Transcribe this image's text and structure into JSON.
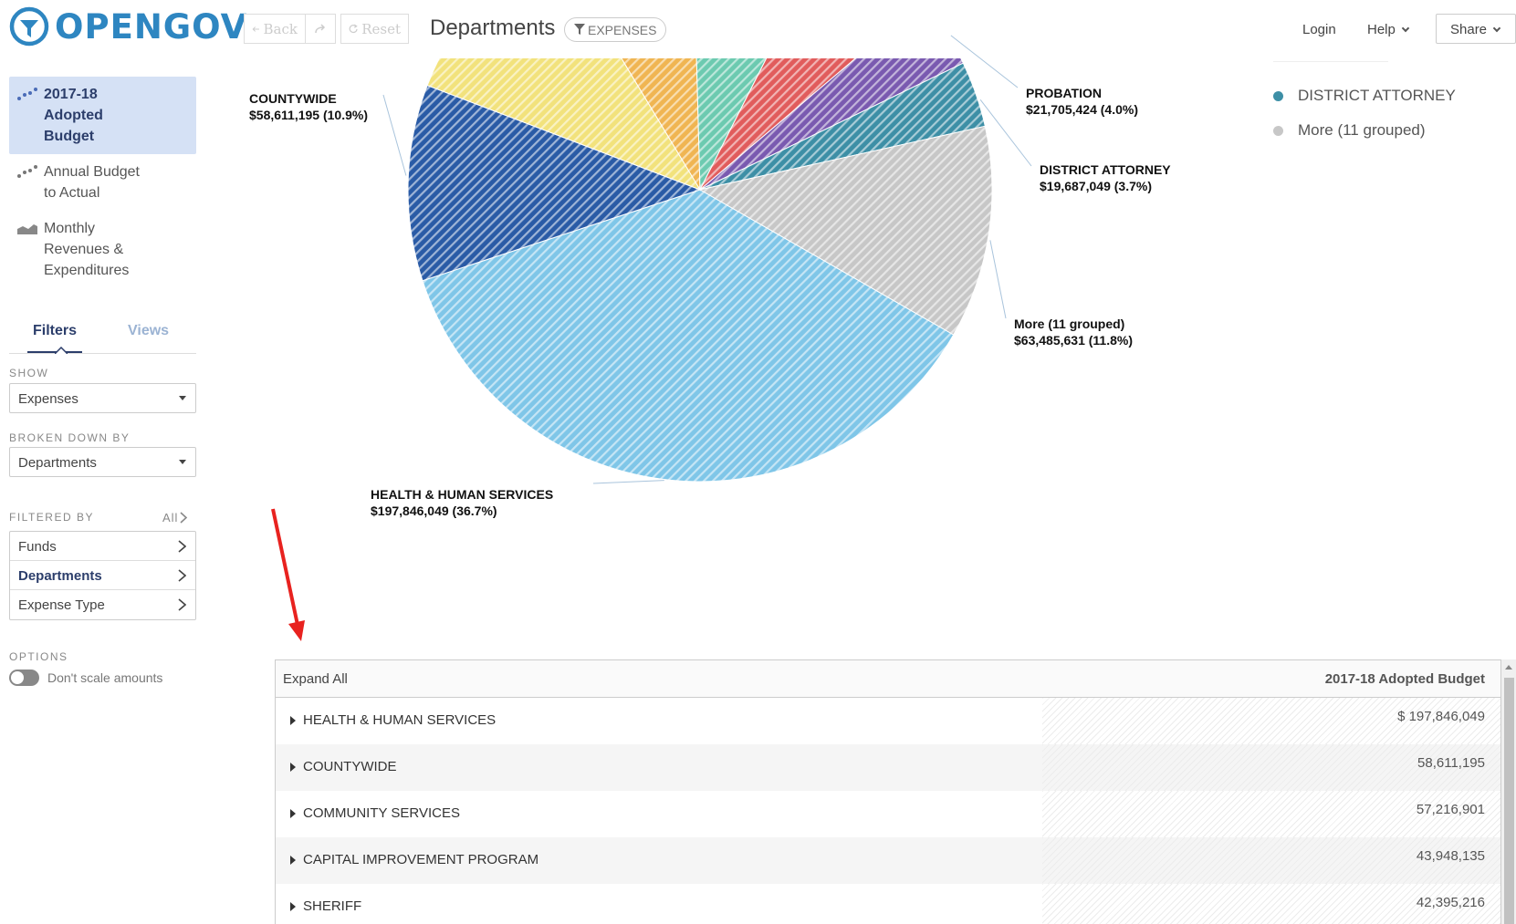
{
  "brand": {
    "name": "OPENGOV",
    "color": "#2e86c1"
  },
  "sidebar": {
    "items": [
      {
        "label": "2017-18\nAdopted\nBudget",
        "icon": "scatter-icon",
        "active": true
      },
      {
        "label": "Annual Budget\nto Actual",
        "icon": "scatter-icon",
        "active": false
      },
      {
        "label": "Monthly\nRevenues &\nExpenditures",
        "icon": "area-chart-icon",
        "active": false
      }
    ],
    "tabs": {
      "filters": "Filters",
      "views": "Views"
    },
    "show": {
      "label": "SHOW",
      "value": "Expenses"
    },
    "broken_down_by": {
      "label": "BROKEN DOWN BY",
      "value": "Departments"
    },
    "filtered_by": {
      "label": "FILTERED BY",
      "all": "All",
      "items": [
        "Funds",
        "Departments",
        "Expense Type"
      ],
      "active": "Departments"
    },
    "options": {
      "label": "OPTIONS",
      "toggle_label": "Don't scale amounts"
    }
  },
  "toolbar": {
    "back": "Back",
    "reset": "Reset",
    "title": "Departments",
    "badge": "EXPENSES"
  },
  "header": {
    "login": "Login",
    "help": "Help",
    "share": "Share"
  },
  "legend": [
    {
      "label": "DISTRICT ATTORNEY",
      "color": "#3d8fa6"
    },
    {
      "label": "More (11 grouped)",
      "color": "#c7c7c7"
    }
  ],
  "chart_data": {
    "type": "pie",
    "title": "",
    "slices": [
      {
        "name": "HEALTH & HUMAN SERVICES",
        "value": 197846049,
        "percent": 36.7,
        "color": "#7fc6e8",
        "label_value": "$197,846,049 (36.7%)",
        "labeled": true
      },
      {
        "name": "COUNTYWIDE",
        "value": 58611195,
        "percent": 10.9,
        "color": "#2a5ba6",
        "label_value": "$58,611,195 (10.9%)",
        "labeled": true
      },
      {
        "name": "COMMUNITY SERVICES",
        "value": 57216901,
        "percent": 10.6,
        "color": "#f2e27c",
        "labeled": false
      },
      {
        "name": "CAPITAL IMPROVEMENT PROGRAM",
        "value": 43948135,
        "percent": 8.2,
        "color": "#f0b552",
        "labeled": false
      },
      {
        "name": "SHERIFF",
        "value": 42395216,
        "percent": 7.9,
        "color": "#6ccab0",
        "labeled": false
      },
      {
        "name": "",
        "value": 34500000,
        "percent": 6.4,
        "color": "#e15c5c",
        "labeled": false
      },
      {
        "name": "PROBATION",
        "value": 21705424,
        "percent": 4.0,
        "color": "#7a5ab0",
        "label_value": "$21,705,424 (4.0%)",
        "labeled": true
      },
      {
        "name": "DISTRICT ATTORNEY",
        "value": 19687049,
        "percent": 3.7,
        "color": "#3d8fa6",
        "label_value": "$19,687,049 (3.7%)",
        "labeled": true
      },
      {
        "name": "More (11 grouped)",
        "value": 63485631,
        "percent": 11.8,
        "color": "#c7c7c7",
        "label_value": "$63,485,631 (11.8%)",
        "labeled": true
      }
    ]
  },
  "table": {
    "expand_all": "Expand All",
    "column": "2017-18 Adopted Budget",
    "rows": [
      {
        "name": "HEALTH & HUMAN SERVICES",
        "value": "$ 197,846,049"
      },
      {
        "name": "COUNTYWIDE",
        "value": "58,611,195"
      },
      {
        "name": "COMMUNITY SERVICES",
        "value": "57,216,901"
      },
      {
        "name": "CAPITAL IMPROVEMENT PROGRAM",
        "value": "43,948,135"
      },
      {
        "name": "SHERIFF",
        "value": "42,395,216"
      }
    ]
  }
}
